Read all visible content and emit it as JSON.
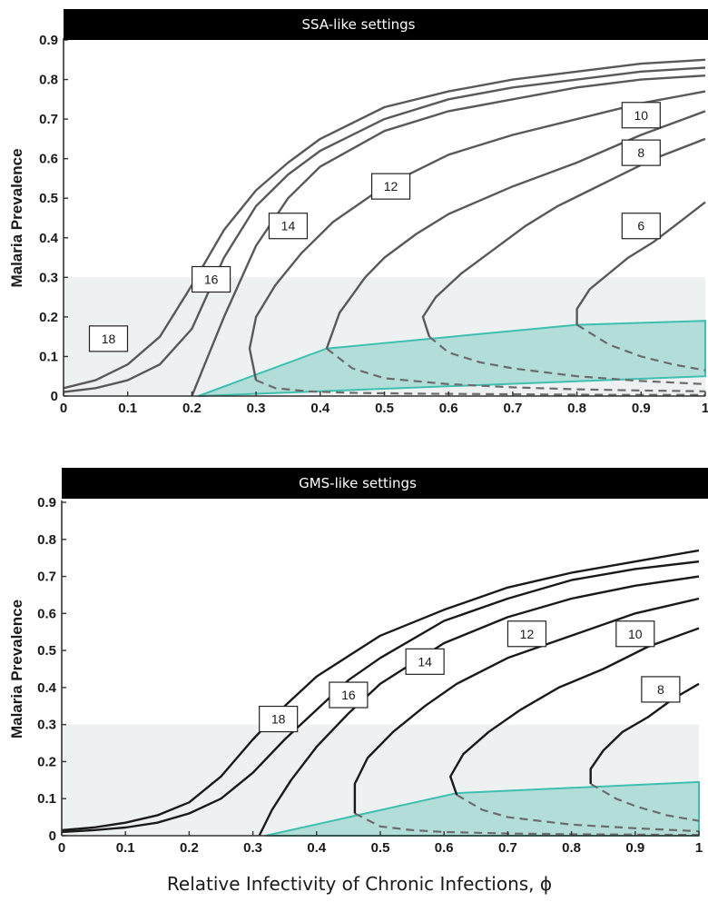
{
  "x_axis_label": "Relative Infectivity of Chronic Infections, ϕ",
  "colors": {
    "shaded_region": "#eef1f2",
    "teal_fill": "#b3ddd9",
    "teal_line": "#3fbfb0",
    "ssa_curve": "#595959",
    "gms_curve": "#1a1a1a",
    "dashed": "#6b6b6b",
    "title_bar": "#000000"
  },
  "chart_data": [
    {
      "type": "line",
      "title": "SSA-like settings",
      "ylabel": "Malaria Prevalence",
      "xlim": [
        0,
        1
      ],
      "ylim": [
        0,
        0.9
      ],
      "xticks": [
        "0",
        "0.1",
        "0.2",
        "0.3",
        "0.4",
        "0.5",
        "0.6",
        "0.7",
        "0.8",
        "0.9",
        "1"
      ],
      "yticks": [
        "0",
        "0.1",
        "0.2",
        "0.3",
        "0.4",
        "0.5",
        "0.6",
        "0.7",
        "0.8",
        "0.9"
      ],
      "shaded_band": [
        0,
        0.3
      ],
      "region": {
        "x": [
          0.21,
          0.41,
          0.8,
          1.0,
          1.0
        ],
        "y": [
          0,
          0.12,
          0.18,
          0.19,
          0.05
        ]
      },
      "series": [
        {
          "name": "18",
          "x": [
            0,
            0.05,
            0.1,
            0.15,
            0.2,
            0.25,
            0.3,
            0.35,
            0.4,
            0.5,
            0.6,
            0.7,
            0.8,
            0.9,
            1.0
          ],
          "y": [
            0.02,
            0.04,
            0.08,
            0.15,
            0.28,
            0.42,
            0.52,
            0.59,
            0.65,
            0.73,
            0.77,
            0.8,
            0.82,
            0.84,
            0.85
          ]
        },
        {
          "name": "16",
          "x": [
            0,
            0.05,
            0.1,
            0.15,
            0.2,
            0.25,
            0.3,
            0.35,
            0.4,
            0.5,
            0.6,
            0.7,
            0.8,
            0.9,
            1.0
          ],
          "y": [
            0.01,
            0.02,
            0.04,
            0.08,
            0.17,
            0.35,
            0.48,
            0.56,
            0.62,
            0.7,
            0.75,
            0.78,
            0.8,
            0.82,
            0.83
          ]
        },
        {
          "name": "14",
          "x": [
            0.2,
            0.22,
            0.25,
            0.3,
            0.35,
            0.4,
            0.5,
            0.6,
            0.7,
            0.8,
            0.9,
            1.0
          ],
          "y": [
            0.0,
            0.08,
            0.2,
            0.38,
            0.5,
            0.58,
            0.67,
            0.72,
            0.75,
            0.78,
            0.8,
            0.81
          ]
        },
        {
          "name": "12",
          "x": [
            0.3,
            0.29,
            0.3,
            0.33,
            0.37,
            0.42,
            0.5,
            0.6,
            0.7,
            0.8,
            0.9,
            1.0
          ],
          "y": [
            0.04,
            0.12,
            0.2,
            0.28,
            0.36,
            0.44,
            0.53,
            0.61,
            0.66,
            0.7,
            0.74,
            0.77
          ]
        },
        {
          "name": "10",
          "x": [
            0.41,
            0.43,
            0.47,
            0.5,
            0.55,
            0.6,
            0.7,
            0.8,
            0.9,
            1.0
          ],
          "y": [
            0.12,
            0.21,
            0.3,
            0.35,
            0.41,
            0.46,
            0.53,
            0.59,
            0.66,
            0.72
          ]
        },
        {
          "name": "8",
          "x": [
            0.57,
            0.56,
            0.58,
            0.62,
            0.67,
            0.72,
            0.77,
            0.82,
            0.87,
            0.92,
            1.0
          ],
          "y": [
            0.15,
            0.2,
            0.25,
            0.31,
            0.37,
            0.43,
            0.48,
            0.52,
            0.56,
            0.6,
            0.65
          ]
        },
        {
          "name": "6",
          "x": [
            0.8,
            0.8,
            0.82,
            0.85,
            0.88,
            0.92,
            0.96,
            1.0
          ],
          "y": [
            0.18,
            0.22,
            0.27,
            0.31,
            0.35,
            0.39,
            0.44,
            0.49
          ]
        }
      ],
      "dashed_series": [
        {
          "x": [
            0.3,
            0.33,
            0.38,
            0.45,
            0.55,
            0.65,
            0.75,
            0.85,
            1.0
          ],
          "y": [
            0.04,
            0.02,
            0.012,
            0.008,
            0.006,
            0.005,
            0.004,
            0.003,
            0.003
          ]
        },
        {
          "x": [
            0.41,
            0.45,
            0.5,
            0.6,
            0.7,
            0.8,
            0.9,
            1.0
          ],
          "y": [
            0.12,
            0.07,
            0.045,
            0.03,
            0.022,
            0.017,
            0.014,
            0.012
          ]
        },
        {
          "x": [
            0.57,
            0.6,
            0.65,
            0.7,
            0.8,
            0.9,
            1.0
          ],
          "y": [
            0.15,
            0.11,
            0.085,
            0.07,
            0.05,
            0.038,
            0.03
          ]
        },
        {
          "x": [
            0.8,
            0.85,
            0.9,
            0.95,
            1.0
          ],
          "y": [
            0.18,
            0.13,
            0.1,
            0.08,
            0.065
          ]
        }
      ],
      "curve_labels": [
        {
          "text": "18",
          "x": 0.07,
          "y": 0.145
        },
        {
          "text": "16",
          "x": 0.23,
          "y": 0.295
        },
        {
          "text": "14",
          "x": 0.35,
          "y": 0.43
        },
        {
          "text": "12",
          "x": 0.51,
          "y": 0.53
        },
        {
          "text": "10",
          "x": 0.9,
          "y": 0.71
        },
        {
          "text": "8",
          "x": 0.9,
          "y": 0.615
        },
        {
          "text": "6",
          "x": 0.9,
          "y": 0.43
        }
      ]
    },
    {
      "type": "line",
      "title": "GMS-like settings",
      "ylabel": "Malaria Prevalence",
      "xlim": [
        0,
        1
      ],
      "ylim": [
        0,
        0.9
      ],
      "xticks": [
        "0",
        "0.1",
        "0.2",
        "0.3",
        "0.4",
        "0.5",
        "0.6",
        "0.7",
        "0.8",
        "0.9",
        "1"
      ],
      "yticks": [
        "0",
        "0.1",
        "0.2",
        "0.3",
        "0.4",
        "0.5",
        "0.6",
        "0.7",
        "0.8",
        "0.9"
      ],
      "shaded_band": [
        0,
        0.3
      ],
      "region": {
        "x": [
          0.32,
          0.62,
          1.0,
          1.0
        ],
        "y": [
          0,
          0.115,
          0.145,
          0
        ]
      },
      "series": [
        {
          "name": "18",
          "x": [
            0,
            0.05,
            0.1,
            0.15,
            0.2,
            0.25,
            0.3,
            0.35,
            0.4,
            0.5,
            0.6,
            0.7,
            0.8,
            0.9,
            1.0
          ],
          "y": [
            0.015,
            0.022,
            0.035,
            0.055,
            0.09,
            0.16,
            0.26,
            0.35,
            0.43,
            0.54,
            0.61,
            0.67,
            0.71,
            0.74,
            0.77
          ]
        },
        {
          "name": "16",
          "x": [
            0,
            0.05,
            0.1,
            0.15,
            0.2,
            0.25,
            0.3,
            0.35,
            0.4,
            0.45,
            0.5,
            0.6,
            0.7,
            0.8,
            0.9,
            1.0
          ],
          "y": [
            0.01,
            0.015,
            0.022,
            0.035,
            0.06,
            0.1,
            0.17,
            0.26,
            0.34,
            0.42,
            0.48,
            0.58,
            0.64,
            0.69,
            0.72,
            0.74
          ]
        },
        {
          "name": "14",
          "x": [
            0.31,
            0.33,
            0.36,
            0.4,
            0.45,
            0.5,
            0.6,
            0.7,
            0.8,
            0.9,
            1.0
          ],
          "y": [
            0.0,
            0.07,
            0.15,
            0.24,
            0.33,
            0.41,
            0.52,
            0.59,
            0.64,
            0.675,
            0.7
          ]
        },
        {
          "name": "12",
          "x": [
            0.46,
            0.46,
            0.48,
            0.52,
            0.57,
            0.62,
            0.7,
            0.8,
            0.9,
            1.0
          ],
          "y": [
            0.06,
            0.14,
            0.21,
            0.28,
            0.35,
            0.41,
            0.48,
            0.54,
            0.6,
            0.64
          ]
        },
        {
          "name": "10",
          "x": [
            0.62,
            0.61,
            0.63,
            0.67,
            0.72,
            0.78,
            0.85,
            0.92,
            1.0
          ],
          "y": [
            0.11,
            0.16,
            0.22,
            0.28,
            0.34,
            0.4,
            0.45,
            0.51,
            0.56
          ]
        },
        {
          "name": "8",
          "x": [
            0.83,
            0.83,
            0.85,
            0.88,
            0.92,
            0.96,
            1.0
          ],
          "y": [
            0.14,
            0.18,
            0.23,
            0.28,
            0.32,
            0.37,
            0.41
          ]
        }
      ],
      "dashed_series": [
        {
          "x": [
            0.46,
            0.5,
            0.55,
            0.6,
            0.7,
            0.8,
            0.9,
            1.0
          ],
          "y": [
            0.06,
            0.025,
            0.015,
            0.01,
            0.006,
            0.004,
            0.003,
            0.002
          ]
        },
        {
          "x": [
            0.62,
            0.66,
            0.7,
            0.8,
            0.9,
            1.0
          ],
          "y": [
            0.11,
            0.07,
            0.05,
            0.03,
            0.02,
            0.012
          ]
        },
        {
          "x": [
            0.83,
            0.87,
            0.9,
            0.95,
            1.0
          ],
          "y": [
            0.14,
            0.1,
            0.08,
            0.055,
            0.04
          ]
        }
      ],
      "curve_labels": [
        {
          "text": "18",
          "x": 0.34,
          "y": 0.315
        },
        {
          "text": "16",
          "x": 0.45,
          "y": 0.38
        },
        {
          "text": "14",
          "x": 0.57,
          "y": 0.47
        },
        {
          "text": "12",
          "x": 0.73,
          "y": 0.545
        },
        {
          "text": "10",
          "x": 0.9,
          "y": 0.545
        },
        {
          "text": "8",
          "x": 0.94,
          "y": 0.395
        }
      ]
    }
  ]
}
